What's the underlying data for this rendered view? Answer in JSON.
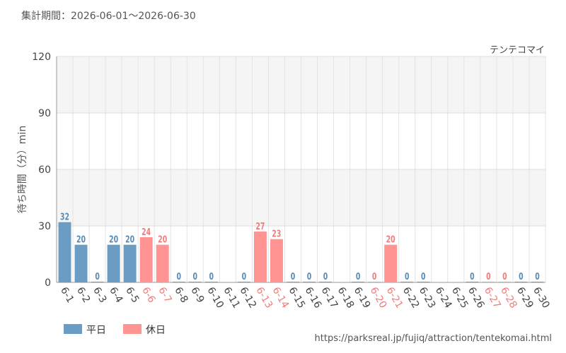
{
  "header": {
    "period_label": "集計期間：2026-06-01～2026-06-30",
    "attraction_name": "テンテコマイ"
  },
  "footer": {
    "url": "https://parksreal.jp/fujiq/attraction/tentekomai.html"
  },
  "colors": {
    "weekday": "#6b9dc4",
    "holiday": "#ff9493",
    "weekday_label": "#5a8bb5",
    "holiday_label": "#f07d7c"
  },
  "chart_data": {
    "type": "bar",
    "ylabel": "待ち時間（分）min",
    "ylim": [
      0,
      120
    ],
    "yticks": [
      0,
      30,
      60,
      90,
      120
    ],
    "grid": true,
    "legend_position": "bottom-left",
    "legend": [
      {
        "key": "weekday",
        "label": "平日"
      },
      {
        "key": "holiday",
        "label": "休日"
      }
    ],
    "categories": [
      "6-1",
      "6-2",
      "6-3",
      "6-4",
      "6-5",
      "6-6",
      "6-7",
      "6-8",
      "6-9",
      "6-10",
      "6-11",
      "6-12",
      "6-13",
      "6-14",
      "6-15",
      "6-16",
      "6-17",
      "6-18",
      "6-19",
      "6-20",
      "6-21",
      "6-22",
      "6-23",
      "6-24",
      "6-25",
      "6-26",
      "6-27",
      "6-28",
      "6-29",
      "6-30"
    ],
    "day_type": [
      "weekday",
      "weekday",
      "weekday",
      "weekday",
      "weekday",
      "holiday",
      "holiday",
      "weekday",
      "weekday",
      "weekday",
      "weekday",
      "weekday",
      "holiday",
      "holiday",
      "weekday",
      "weekday",
      "weekday",
      "weekday",
      "weekday",
      "holiday",
      "holiday",
      "weekday",
      "weekday",
      "weekday",
      "weekday",
      "weekday",
      "holiday",
      "holiday",
      "weekday",
      "weekday"
    ],
    "values": [
      32,
      20,
      0,
      20,
      20,
      24,
      20,
      0,
      0,
      0,
      null,
      0,
      27,
      23,
      0,
      0,
      0,
      null,
      0,
      0,
      20,
      0,
      0,
      null,
      null,
      0,
      0,
      0,
      0,
      0
    ]
  }
}
